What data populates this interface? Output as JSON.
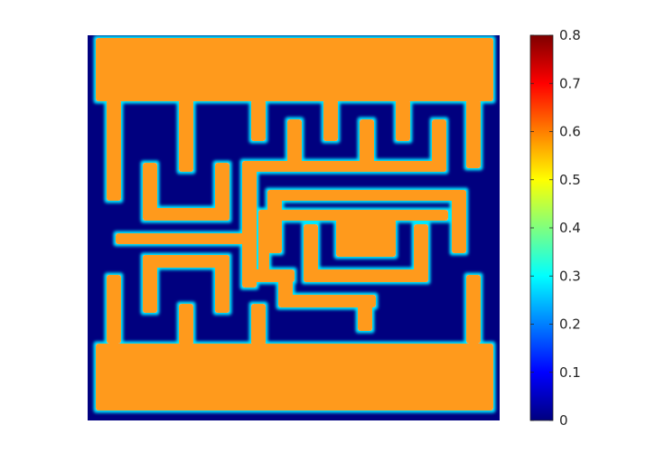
{
  "chart_data": {
    "type": "heatmap",
    "title": "",
    "xlabel": "",
    "ylabel": "",
    "colormap": "jet",
    "colorbar": {
      "range": [
        0,
        0.8
      ],
      "ticks": [
        "0",
        "0.1",
        "0.2",
        "0.3",
        "0.4",
        "0.5",
        "0.6",
        "0.7",
        "0.8"
      ]
    },
    "background_value": 0,
    "structure_value": 0.62,
    "colors": {
      "background": "#00007f",
      "structure": "#ff9a1e",
      "edge_glow": "#00e8ff",
      "colorbar_stops": [
        "#00007f",
        "#0000ff",
        "#007fff",
        "#00ffff",
        "#7fff7f",
        "#ffff00",
        "#ff7f00",
        "#ff0000",
        "#7f0000"
      ]
    }
  }
}
